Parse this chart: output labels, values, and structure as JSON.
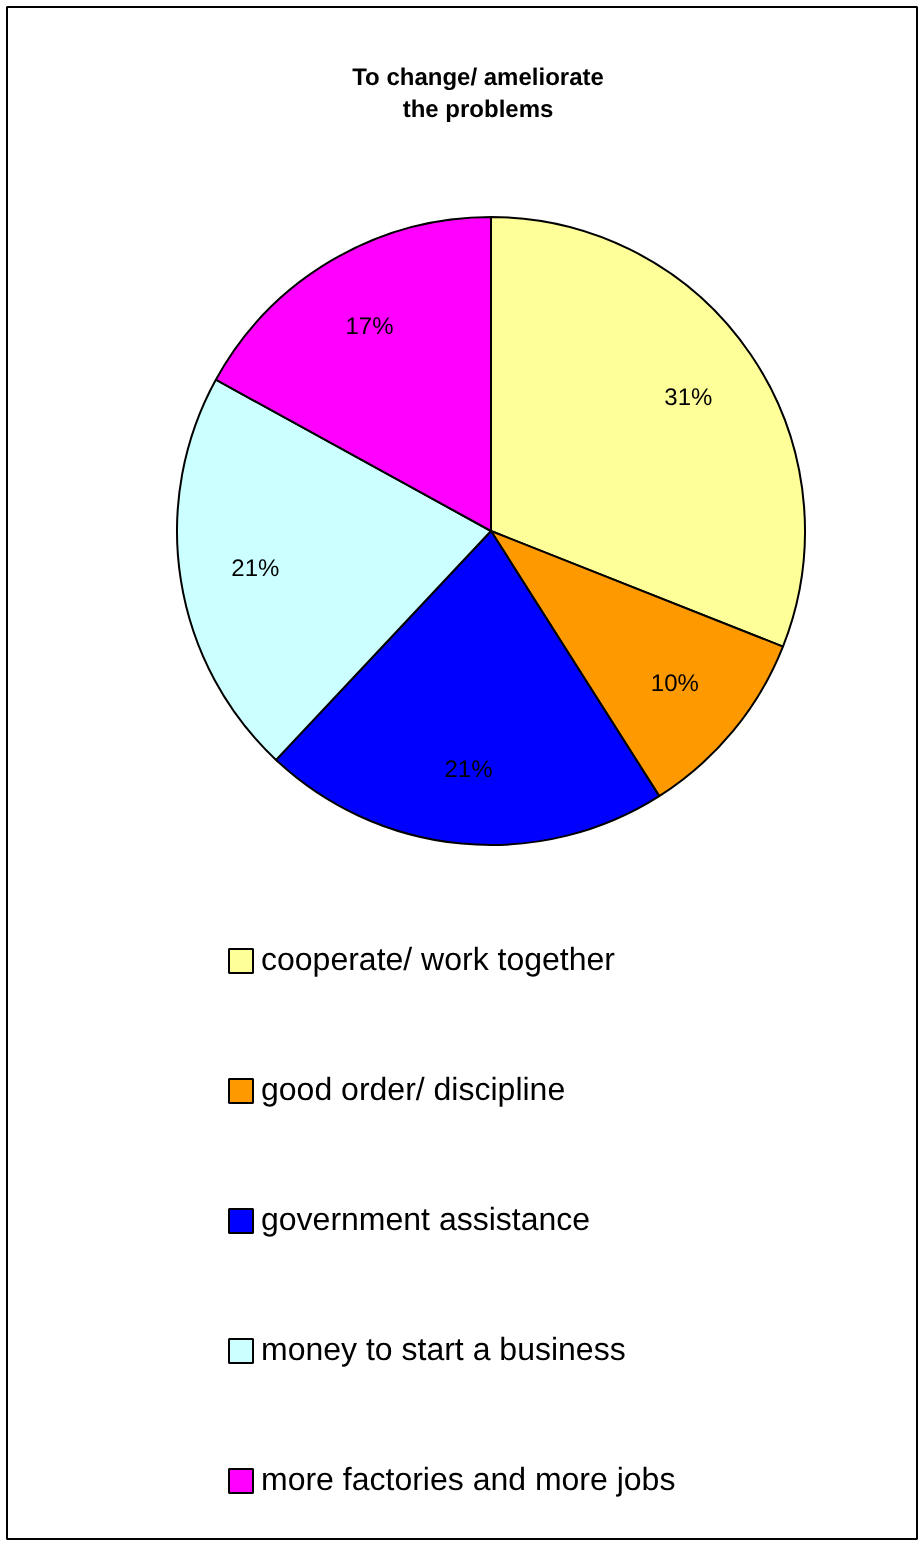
{
  "chart_data": {
    "type": "pie",
    "title": "To change/ ameliorate the problems",
    "categories": [
      "cooperate/ work together",
      "good order/ discipline",
      "government assistance",
      "money to start a business",
      "more factories and more jobs"
    ],
    "values": [
      31,
      10,
      21,
      21,
      17
    ],
    "colors": [
      "#ffff99",
      "#ff9900",
      "#0000ff",
      "#ccffff",
      "#ff00ff"
    ],
    "value_labels": [
      "31%",
      "10%",
      "21%",
      "21%",
      "17%"
    ],
    "legend": "bottom"
  }
}
